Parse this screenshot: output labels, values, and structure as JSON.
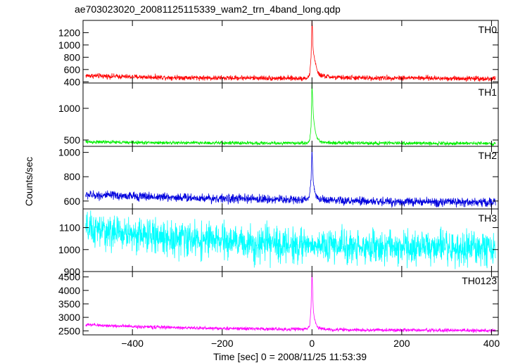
{
  "title": "ae703023020_20081125115339_wam2_trn_4band_long.qdp",
  "ylabel": "Counts/sec",
  "xlabel": "Time [sec] 0 = 2008/11/25 11:53:39",
  "chart_data": [
    {
      "type": "line",
      "name": "TH0",
      "color": "#ff0000",
      "xlim": [
        -510,
        415
      ],
      "ylim": [
        380,
        1400
      ],
      "yticks": [
        400,
        600,
        800,
        1000,
        1200
      ],
      "ytick_labels": [
        "400",
        "600",
        "800",
        "1000",
        "1200"
      ],
      "x": [
        -500,
        -450,
        -400,
        -350,
        -300,
        -250,
        -200,
        -150,
        -100,
        -50,
        -10,
        -5,
        -2,
        0,
        1,
        2,
        3,
        5,
        8,
        12,
        20,
        50,
        100,
        150,
        200,
        250,
        300,
        350,
        400
      ],
      "y": [
        500,
        490,
        480,
        475,
        470,
        465,
        460,
        465,
        460,
        455,
        460,
        520,
        800,
        1400,
        1300,
        1000,
        900,
        800,
        700,
        560,
        500,
        470,
        465,
        460,
        465,
        460,
        455,
        455,
        450
      ],
      "noise": 45
    },
    {
      "type": "line",
      "name": "TH1",
      "color": "#00ee00",
      "xlim": [
        -510,
        415
      ],
      "ylim": [
        400,
        1400
      ],
      "yticks": [
        500,
        1000
      ],
      "ytick_labels": [
        "500",
        "1000"
      ],
      "x": [
        -500,
        -450,
        -400,
        -350,
        -300,
        -250,
        -200,
        -150,
        -100,
        -50,
        -10,
        -5,
        -2,
        0,
        1,
        2,
        3,
        5,
        8,
        12,
        20,
        50,
        100,
        150,
        200,
        250,
        300,
        350,
        400
      ],
      "y": [
        470,
        465,
        460,
        458,
        455,
        455,
        452,
        452,
        450,
        450,
        455,
        500,
        700,
        1400,
        1250,
        1050,
        900,
        750,
        620,
        520,
        470,
        455,
        452,
        450,
        450,
        448,
        448,
        448,
        445
      ],
      "noise": 30
    },
    {
      "type": "line",
      "name": "TH2",
      "color": "#0000dd",
      "xlim": [
        -510,
        415
      ],
      "ylim": [
        535,
        1050
      ],
      "yticks": [
        600,
        800,
        1000
      ],
      "ytick_labels": [
        "600",
        "800",
        "1000"
      ],
      "x": [
        -500,
        -450,
        -400,
        -350,
        -300,
        -250,
        -200,
        -150,
        -100,
        -50,
        -10,
        -5,
        -2,
        0,
        1,
        2,
        3,
        5,
        8,
        12,
        20,
        50,
        100,
        150,
        200,
        250,
        300,
        350,
        400
      ],
      "y": [
        650,
        645,
        640,
        635,
        630,
        625,
        620,
        618,
        615,
        612,
        615,
        650,
        780,
        1030,
        930,
        820,
        760,
        700,
        660,
        630,
        610,
        600,
        598,
        595,
        595,
        592,
        592,
        590,
        590
      ],
      "noise": 40
    },
    {
      "type": "line",
      "name": "TH3",
      "color": "#00ffff",
      "xlim": [
        -510,
        415
      ],
      "ylim": [
        900,
        1185
      ],
      "yticks": [
        900,
        1000,
        1100
      ],
      "ytick_labels": [
        "900",
        "1000",
        "1100"
      ],
      "x": [
        -500,
        -450,
        -400,
        -350,
        -300,
        -250,
        -200,
        -150,
        -100,
        -50,
        0,
        50,
        100,
        150,
        200,
        250,
        300,
        350,
        400
      ],
      "y": [
        1090,
        1080,
        1070,
        1060,
        1050,
        1045,
        1040,
        1030,
        1025,
        1020,
        1020,
        1015,
        1015,
        1010,
        1010,
        1010,
        1005,
        1000,
        1005
      ],
      "noise": 85
    },
    {
      "type": "line",
      "name": "TH0123",
      "color": "#ff00ff",
      "xlim": [
        -510,
        415
      ],
      "ylim": [
        2350,
        4700
      ],
      "yticks": [
        2500,
        3000,
        3500,
        4000,
        4500
      ],
      "ytick_labels": [
        "2500",
        "3000",
        "3500",
        "4000",
        "4500"
      ],
      "x": [
        -500,
        -450,
        -400,
        -350,
        -300,
        -250,
        -200,
        -150,
        -100,
        -50,
        -10,
        -5,
        -2,
        0,
        1,
        2,
        3,
        5,
        8,
        12,
        20,
        50,
        100,
        150,
        200,
        250,
        300,
        350,
        400
      ],
      "y": [
        2720,
        2690,
        2660,
        2640,
        2620,
        2600,
        2590,
        2580,
        2570,
        2560,
        2570,
        2700,
        3400,
        4700,
        4300,
        3700,
        3300,
        3000,
        2800,
        2650,
        2570,
        2540,
        2530,
        2530,
        2525,
        2520,
        2520,
        2515,
        2510
      ],
      "noise": 70
    }
  ],
  "xticks": [
    -400,
    -200,
    0,
    200,
    400
  ],
  "xtick_labels": [
    "−400",
    "−200",
    "0",
    "200",
    "400"
  ]
}
